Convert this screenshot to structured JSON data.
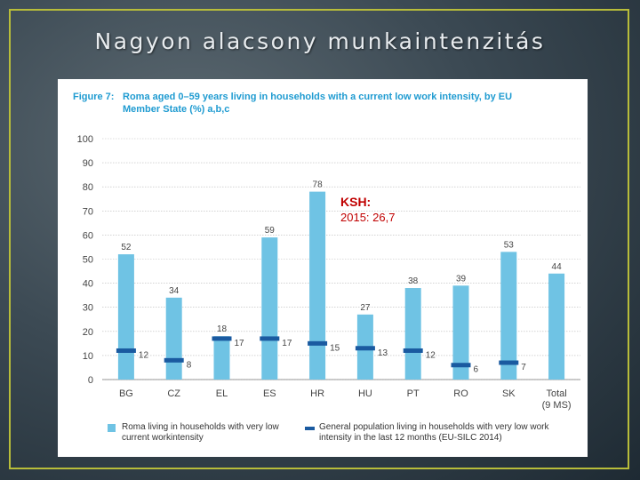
{
  "slide": {
    "title": "Nagyon alacsony munkaintenzitás"
  },
  "figure": {
    "label": "Figure 7:",
    "title": "Roma aged 0–59 years living in households with a current low work intensity, by EU Member State (%) a,b,c"
  },
  "annotation": {
    "label": "KSH:",
    "value": "2015: 26,7"
  },
  "colors": {
    "bar": "#6fc3e4",
    "marker": "#1a5aa0",
    "frame": "#b8bd3a",
    "heading": "#1f9bd1",
    "annotation": "#c00000"
  },
  "chart_data": {
    "type": "bar",
    "categories": [
      "BG",
      "CZ",
      "EL",
      "ES",
      "HR",
      "HU",
      "PT",
      "RO",
      "SK",
      "Total (9 MS)"
    ],
    "series": [
      {
        "name": "Roma living in households with very low current workintensity",
        "values": [
          52,
          34,
          18,
          59,
          78,
          27,
          38,
          39,
          53,
          44
        ]
      },
      {
        "name": "General population living in households with very low work intensity in the last 12 months (EU-SILC 2014)",
        "values": [
          12,
          8,
          17,
          17,
          15,
          13,
          12,
          6,
          7,
          null
        ]
      }
    ],
    "ylim": [
      0,
      100
    ],
    "yticks": [
      0,
      10,
      20,
      30,
      40,
      50,
      60,
      70,
      80,
      90,
      100
    ],
    "grid": true,
    "legend_position": "bottom"
  }
}
